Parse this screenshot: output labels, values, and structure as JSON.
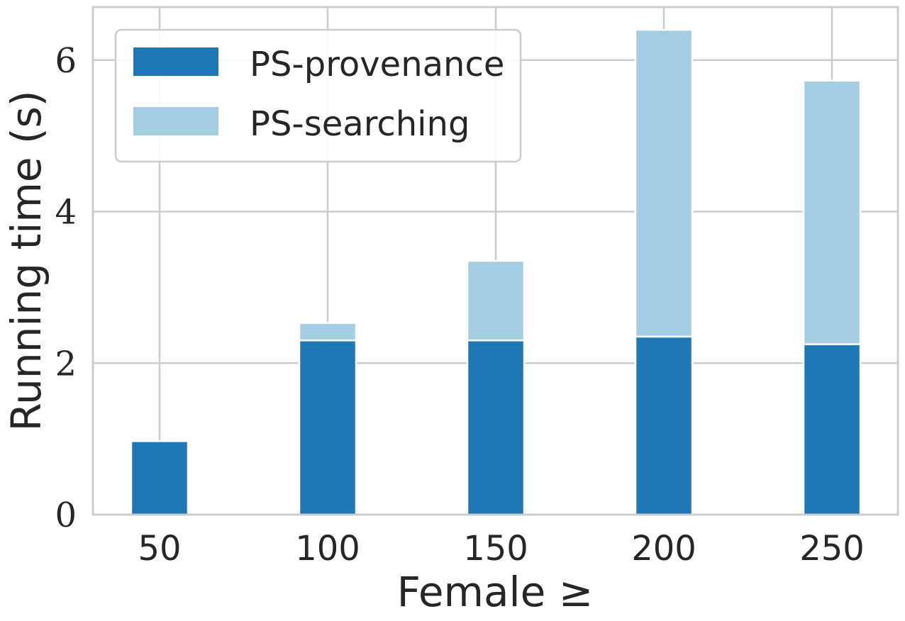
{
  "chart_data": {
    "type": "bar",
    "stacked": true,
    "categories": [
      "50",
      "100",
      "150",
      "200",
      "250"
    ],
    "series": [
      {
        "name": "PS-provenance",
        "color": "#1f77b4",
        "values": [
          0.97,
          2.3,
          2.3,
          2.35,
          2.25
        ]
      },
      {
        "name": "PS-searching",
        "color": "#a6cee3",
        "values": [
          0.0,
          0.23,
          1.05,
          4.05,
          3.48
        ]
      }
    ],
    "title": "",
    "xlabel": "Female ≥",
    "ylabel": "Running time (s)",
    "ylim": [
      0,
      6.7
    ],
    "yticks": [
      0,
      2,
      4,
      6
    ],
    "grid": true,
    "legend_position": "top-left"
  }
}
